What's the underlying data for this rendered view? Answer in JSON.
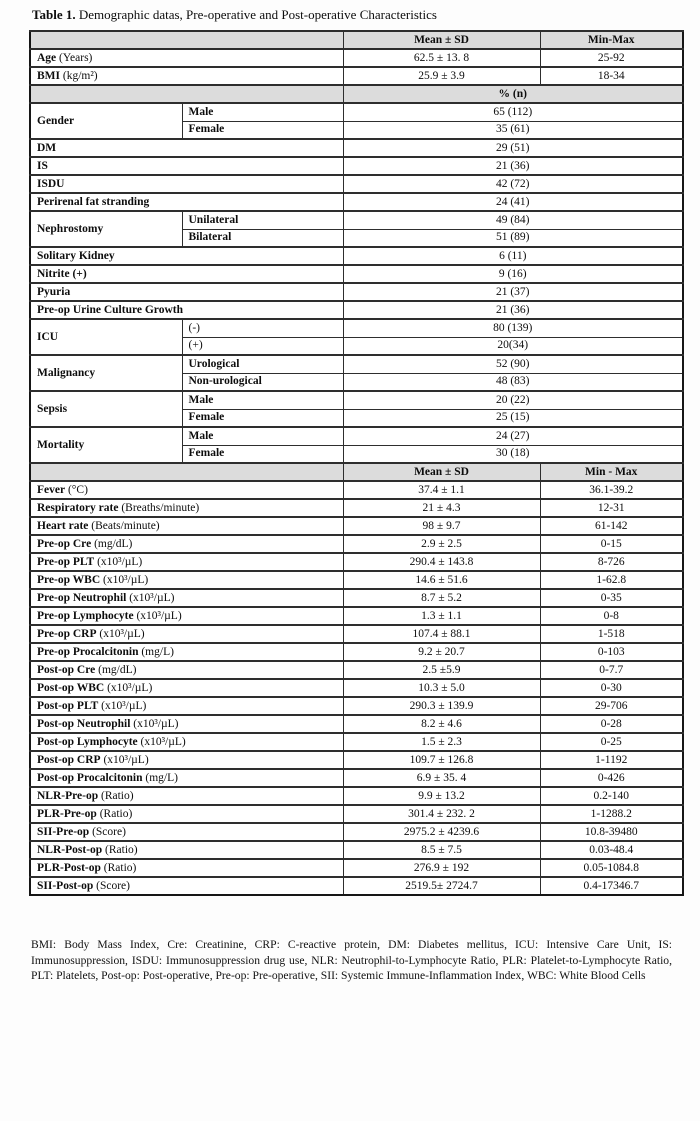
{
  "title": {
    "bold": "Table 1.",
    "rest": " Demographic datas, Pre-operative and Post-operative Characteristics"
  },
  "colors": {
    "header_bg": "#dcdcdc",
    "border_dark": "#161616",
    "border_mid": "#2e2e2e"
  },
  "table": {
    "header1": {
      "mean": "Mean ± SD",
      "minmax": "Min-Max"
    },
    "top_rows": [
      {
        "b": "Age",
        "r": " (Years)",
        "mean": "62.5 ± 13. 8",
        "minmax": "25-92"
      },
      {
        "b": "BMI",
        "r": " (kg/m²)",
        "mean": "25.9 ± 3.9",
        "minmax": "18-34"
      }
    ],
    "percent_header": "% (n)",
    "categorical": [
      {
        "label": "Gender",
        "rows": [
          {
            "sub": "Male",
            "sub_bold": true,
            "val": "65 (112)"
          },
          {
            "sub": "Female",
            "sub_bold": true,
            "val": "35 (61)"
          }
        ]
      },
      {
        "label": "DM",
        "rows": [
          {
            "val": "29 (51)"
          }
        ]
      },
      {
        "label": "IS",
        "rows": [
          {
            "val": "21 (36)"
          }
        ]
      },
      {
        "label": "ISDU",
        "rows": [
          {
            "val": "42 (72)"
          }
        ]
      },
      {
        "label": "Perirenal fat stranding",
        "rows": [
          {
            "val": "24 (41)"
          }
        ]
      },
      {
        "label": "Nephrostomy",
        "rows": [
          {
            "sub": "Unilateral",
            "sub_bold": true,
            "val": "49 (84)"
          },
          {
            "sub": "Bilateral",
            "sub_bold": true,
            "val": "51 (89)"
          }
        ]
      },
      {
        "label": "Solitary Kidney",
        "rows": [
          {
            "val": "6 (11)"
          }
        ]
      },
      {
        "label": "Nitrite (+)",
        "rows": [
          {
            "val": "9 (16)"
          }
        ]
      },
      {
        "label": "Pyuria",
        "rows": [
          {
            "val": "21 (37)"
          }
        ]
      },
      {
        "label": "Pre-op Urine Culture Growth",
        "rows": [
          {
            "val": "21 (36)"
          }
        ]
      },
      {
        "label": "ICU",
        "rows": [
          {
            "sub": "(-)",
            "sub_bold": false,
            "val": "80 (139)"
          },
          {
            "sub": "(+)",
            "sub_bold": false,
            "val": "20(34)"
          }
        ]
      },
      {
        "label": "Malignancy",
        "rows": [
          {
            "sub": "Urological",
            "sub_bold": true,
            "val": "52 (90)"
          },
          {
            "sub": "Non-urological",
            "sub_bold": true,
            "val": "48 (83)"
          }
        ]
      },
      {
        "label": "Sepsis",
        "rows": [
          {
            "sub": "Male",
            "sub_bold": true,
            "val": "20 (22)"
          },
          {
            "sub": "Female",
            "sub_bold": true,
            "val": "25 (15)"
          }
        ]
      },
      {
        "label": "Mortality",
        "rows": [
          {
            "sub": "Male",
            "sub_bold": true,
            "val": "24 (27)"
          },
          {
            "sub": "Female",
            "sub_bold": true,
            "val": "30 (18)"
          }
        ]
      }
    ],
    "header2": {
      "mean": "Mean ± SD",
      "minmax": "Min - Max"
    },
    "measures": [
      {
        "b": "Fever",
        "r": " (°C)",
        "mean": "37.4 ± 1.1",
        "minmax": "36.1-39.2"
      },
      {
        "b": "Respiratory rate",
        "r": " (Breaths/minute)",
        "mean": "21 ± 4.3",
        "minmax": "12-31"
      },
      {
        "b": "Heart rate",
        "r": " (Beats/minute)",
        "mean": "98 ± 9.7",
        "minmax": "61-142"
      },
      {
        "b": "Pre-op Cre",
        "r": " (mg/dL)",
        "mean": "2.9 ± 2.5",
        "minmax": "0-15"
      },
      {
        "b": "Pre-op PLT",
        "r": " (x10³/µL)",
        "mean": "290.4 ± 143.8",
        "minmax": "8-726"
      },
      {
        "b": "Pre-op WBC",
        "r": " (x10³/µL)",
        "mean": "14.6 ± 51.6",
        "minmax": "1-62.8"
      },
      {
        "b": "Pre-op Neutrophil",
        "r": " (x10³/µL)",
        "mean": "8.7 ± 5.2",
        "minmax": "0-35"
      },
      {
        "b": "Pre-op Lymphocyte",
        "r": " (x10³/µL)",
        "mean": "1.3 ± 1.1",
        "minmax": "0-8"
      },
      {
        "b": "Pre-op CRP",
        "r": " (x10³/µL)",
        "mean": "107.4 ± 88.1",
        "minmax": "1-518"
      },
      {
        "b": "Pre-op Procalcitonin",
        "r": " (mg/L)",
        "mean": "9.2 ± 20.7",
        "minmax": "0-103"
      },
      {
        "b": "Post-op Cre",
        "r": " (mg/dL)",
        "mean": "2.5 ±5.9",
        "minmax": "0-7.7"
      },
      {
        "b": "Post-op WBC",
        "r": " (x10³/µL)",
        "mean": "10.3 ± 5.0",
        "minmax": "0-30"
      },
      {
        "b": "Post-op PLT",
        "r": " (x10³/µL)",
        "mean": "290.3 ± 139.9",
        "minmax": "29-706"
      },
      {
        "b": "Post-op Neutrophil",
        "r": " (x10³/µL)",
        "mean": "8.2 ± 4.6",
        "minmax": "0-28"
      },
      {
        "b": "Post-op Lymphocyte",
        "r": " (x10³/µL)",
        "mean": "1.5 ± 2.3",
        "minmax": "0-25"
      },
      {
        "b": "Post-op CRP",
        "r": " (x10³/µL)",
        "mean": "109.7 ± 126.8",
        "minmax": "1-1192"
      },
      {
        "b": "Post-op Procalcitonin",
        "r": " (mg/L)",
        "mean": "6.9 ± 35. 4",
        "minmax": "0-426"
      },
      {
        "b": "NLR-Pre-op",
        "r": " (Ratio)",
        "mean": "9.9 ± 13.2",
        "minmax": "0.2-140"
      },
      {
        "b": "PLR-Pre-op",
        "r": " (Ratio)",
        "mean": "301.4 ± 232. 2",
        "minmax": "1-1288.2"
      },
      {
        "b": "SII-Pre-op",
        "r": " (Score)",
        "mean": "2975.2 ± 4239.6",
        "minmax": "10.8-39480"
      },
      {
        "b": "NLR-Post-op",
        "r": " (Ratio)",
        "mean": "8.5 ± 7.5",
        "minmax": "0.03-48.4"
      },
      {
        "b": "PLR-Post-op",
        "r": " (Ratio)",
        "mean": "276.9 ± 192",
        "minmax": "0.05-1084.8"
      },
      {
        "b": "SII-Post-op",
        "r": " (Score)",
        "mean": "2519.5± 2724.7",
        "minmax": "0.4-17346.7"
      }
    ]
  },
  "footnote": "BMI: Body Mass Index,  Cre: Creatinine, CRP: C-reactive protein, DM: Diabetes mellitus, ICU: Intensive Care Unit, IS: Immunosuppression, ISDU:  Immunosuppression drug use, NLR: Neutrophil-to-Lymphocyte Ratio, PLR: Platelet-to-Lymphocyte Ratio, PLT: Platelets, Post-op: Post-operative, Pre-op: Pre-operative,  SII: Systemic Immune-Inflammation Index, WBC: White Blood Cells"
}
